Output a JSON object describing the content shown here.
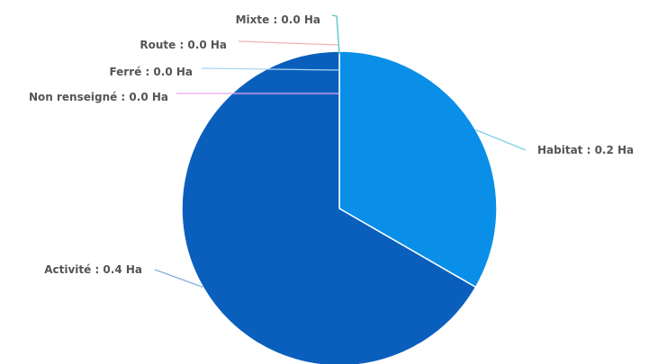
{
  "chart_data": {
    "type": "pie",
    "unit": "Ha",
    "slices": [
      {
        "name": "Habitat",
        "value": 0.2,
        "label": "Habitat : 0.2 Ha",
        "color": "#0a8fe8",
        "leader_color": "#7fd0ea"
      },
      {
        "name": "Activité",
        "value": 0.4,
        "label": "Activité : 0.4 Ha",
        "color": "#0a5fbd",
        "leader_color": "#7fb0e0"
      },
      {
        "name": "Non renseigné",
        "value": 0.0,
        "label": "Non renseigné : 0.0 Ha",
        "color": "#d27fd0",
        "leader_color": "#e7a8e3"
      },
      {
        "name": "Ferré",
        "value": 0.0,
        "label": "Ferré : 0.0 Ha",
        "color": "#9fd0f0",
        "leader_color": "#a8d6f2"
      },
      {
        "name": "Route",
        "value": 0.0,
        "label": "Route : 0.0 Ha",
        "color": "#f0a6ad",
        "leader_color": "#f2b2b8"
      },
      {
        "name": "Mixte",
        "value": 0.0,
        "label": "Mixte : 0.0 Ha",
        "color": "#2fb3b3",
        "leader_color": "#4cc4c4"
      }
    ]
  }
}
